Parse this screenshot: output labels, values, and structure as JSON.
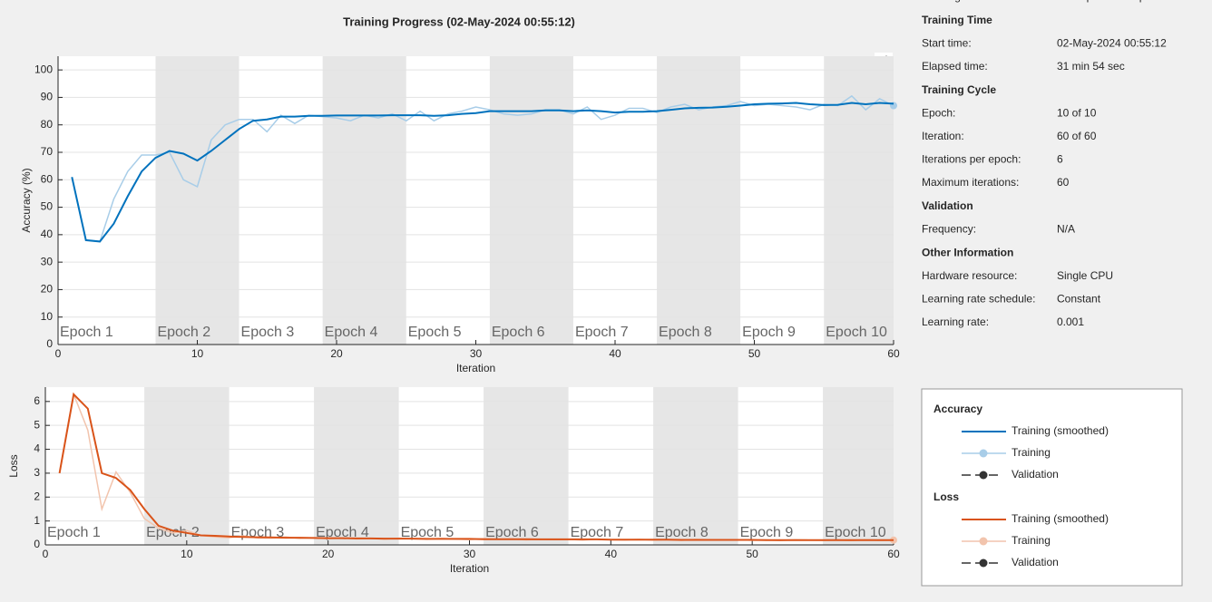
{
  "title": "Training Progress (02-May-2024 00:55:12)",
  "info": {
    "status": {
      "label": "Training finished:",
      "value": "Max epochs completed"
    },
    "sections": [
      {
        "title": "Training Time",
        "rows": [
          [
            "Start time:",
            "02-May-2024 00:55:12"
          ],
          [
            "Elapsed time:",
            "31 min 54 sec"
          ]
        ]
      },
      {
        "title": "Training Cycle",
        "rows": [
          [
            "Epoch:",
            "10 of 10"
          ],
          [
            "Iteration:",
            "60 of 60"
          ],
          [
            "Iterations per epoch:",
            "6"
          ],
          [
            "Maximum iterations:",
            "60"
          ]
        ]
      },
      {
        "title": "Validation",
        "rows": [
          [
            "Frequency:",
            "N/A"
          ]
        ]
      },
      {
        "title": "Other Information",
        "rows": [
          [
            "Hardware resource:",
            "Single CPU"
          ],
          [
            "Learning rate schedule:",
            "Constant"
          ],
          [
            "Learning rate:",
            "0.001"
          ]
        ]
      }
    ]
  },
  "chart_data": [
    {
      "type": "line",
      "legend_title": "Accuracy",
      "extra_legend": [
        "Validation"
      ],
      "xlabel": "Iteration",
      "ylabel": "Accuracy (%)",
      "xlim": [
        0,
        60
      ],
      "xticks": [
        0,
        10,
        20,
        30,
        40,
        50,
        60
      ],
      "ylim": [
        0,
        105
      ],
      "yticks": [
        0,
        10,
        20,
        30,
        40,
        50,
        60,
        70,
        80,
        90,
        100
      ],
      "grid": true,
      "epochs": {
        "labels": [
          "Epoch 1",
          "Epoch 2",
          "Epoch 3",
          "Epoch 4",
          "Epoch 5",
          "Epoch 6",
          "Epoch 7",
          "Epoch 8",
          "Epoch 9",
          "Epoch 10"
        ],
        "starts": [
          0,
          7,
          13,
          19,
          25,
          31,
          37,
          43,
          49,
          55
        ],
        "band_color": "#e6e6e6"
      },
      "x": [
        1,
        2,
        3,
        4,
        5,
        6,
        7,
        8,
        9,
        10,
        11,
        12,
        13,
        14,
        15,
        16,
        17,
        18,
        19,
        20,
        21,
        22,
        23,
        24,
        25,
        26,
        27,
        28,
        29,
        30,
        31,
        32,
        33,
        34,
        35,
        36,
        37,
        38,
        39,
        40,
        41,
        42,
        43,
        44,
        45,
        46,
        47,
        48,
        49,
        50,
        51,
        52,
        53,
        54,
        55,
        56,
        57,
        58,
        59,
        60
      ],
      "series": [
        {
          "name": "Training (smoothed)",
          "color": "#0072bd",
          "values": [
            61,
            38,
            37.5,
            44,
            54,
            63,
            68,
            70.5,
            69.5,
            67,
            70.5,
            74.5,
            78.5,
            81.5,
            82,
            83,
            83,
            83.3,
            83.3,
            83.4,
            83.4,
            83.4,
            83.4,
            83.5,
            83.5,
            83.5,
            83.3,
            83.5,
            84,
            84.3,
            85,
            85,
            85,
            85,
            85.3,
            85.3,
            85,
            85.3,
            85,
            84.5,
            84.8,
            84.8,
            85,
            85.5,
            86,
            86.2,
            86.3,
            86.6,
            87,
            87.5,
            87.7,
            87.8,
            88,
            87.5,
            87.2,
            87.3,
            88,
            87.5,
            88,
            87.7
          ]
        },
        {
          "name": "Training",
          "color": "#a8cde8",
          "values": [
            61,
            38,
            37.5,
            53,
            63,
            69,
            69,
            70,
            60,
            57.5,
            74.5,
            80,
            82,
            82,
            77.5,
            83.5,
            80.5,
            83.5,
            83,
            82.5,
            81.5,
            83.5,
            82.5,
            84,
            81.5,
            85,
            81.5,
            84,
            85,
            86.5,
            85.5,
            84,
            83.5,
            84,
            85.5,
            85.5,
            84,
            86.5,
            82,
            83.5,
            86,
            86,
            84.5,
            86.5,
            87.5,
            85.5,
            86.5,
            87,
            88.5,
            87,
            87.5,
            87,
            86.5,
            85.5,
            87.5,
            87,
            90.5,
            85.5,
            89.5,
            87
          ]
        }
      ]
    },
    {
      "type": "line",
      "legend_title": "Loss",
      "extra_legend": [
        "Validation"
      ],
      "xlabel": "Iteration",
      "ylabel": "Loss",
      "xlim": [
        0,
        60
      ],
      "xticks": [
        0,
        10,
        20,
        30,
        40,
        50,
        60
      ],
      "ylim": [
        0,
        6.6
      ],
      "yticks": [
        0,
        1,
        2,
        3,
        4,
        5,
        6
      ],
      "grid": true,
      "epochs": {
        "labels": [
          "Epoch 1",
          "Epoch 2",
          "Epoch 3",
          "Epoch 4",
          "Epoch 5",
          "Epoch 6",
          "Epoch 7",
          "Epoch 8",
          "Epoch 9",
          "Epoch 10"
        ],
        "starts": [
          0,
          7,
          13,
          19,
          25,
          31,
          37,
          43,
          49,
          55
        ],
        "band_color": "#e6e6e6"
      },
      "x": [
        1,
        2,
        3,
        4,
        5,
        6,
        7,
        8,
        9,
        10,
        11,
        12,
        13,
        14,
        15,
        16,
        17,
        18,
        19,
        20,
        21,
        22,
        23,
        24,
        25,
        26,
        27,
        28,
        29,
        30,
        31,
        32,
        33,
        34,
        35,
        36,
        37,
        38,
        39,
        40,
        41,
        42,
        43,
        44,
        45,
        46,
        47,
        48,
        49,
        50,
        51,
        52,
        53,
        54,
        55,
        56,
        57,
        58,
        59,
        60
      ],
      "series": [
        {
          "name": "Training (smoothed)",
          "color": "#d95319",
          "values": [
            3.0,
            6.3,
            5.7,
            3.0,
            2.8,
            2.3,
            1.5,
            0.8,
            0.6,
            0.5,
            0.4,
            0.38,
            0.35,
            0.33,
            0.32,
            0.31,
            0.3,
            0.3,
            0.29,
            0.28,
            0.28,
            0.27,
            0.27,
            0.26,
            0.26,
            0.26,
            0.25,
            0.25,
            0.25,
            0.25,
            0.24,
            0.24,
            0.24,
            0.24,
            0.23,
            0.23,
            0.23,
            0.23,
            0.23,
            0.22,
            0.22,
            0.22,
            0.22,
            0.22,
            0.21,
            0.21,
            0.21,
            0.21,
            0.21,
            0.21,
            0.2,
            0.2,
            0.2,
            0.2,
            0.2,
            0.2,
            0.2,
            0.2,
            0.2,
            0.2
          ]
        },
        {
          "name": "Training",
          "color": "#f2c4ad",
          "values": [
            3.0,
            6.3,
            4.8,
            1.5,
            3.05,
            2.2,
            1.1,
            0.7,
            0.5,
            0.6,
            0.4,
            0.33,
            0.3,
            0.38,
            0.29,
            0.28,
            0.33,
            0.27,
            0.3,
            0.26,
            0.29,
            0.25,
            0.27,
            0.24,
            0.28,
            0.25,
            0.23,
            0.27,
            0.24,
            0.22,
            0.26,
            0.23,
            0.25,
            0.21,
            0.24,
            0.22,
            0.23,
            0.2,
            0.24,
            0.22,
            0.21,
            0.23,
            0.2,
            0.22,
            0.19,
            0.23,
            0.21,
            0.2,
            0.22,
            0.19,
            0.21,
            0.18,
            0.22,
            0.2,
            0.19,
            0.21,
            0.18,
            0.22,
            0.19,
            0.2
          ]
        }
      ]
    }
  ]
}
